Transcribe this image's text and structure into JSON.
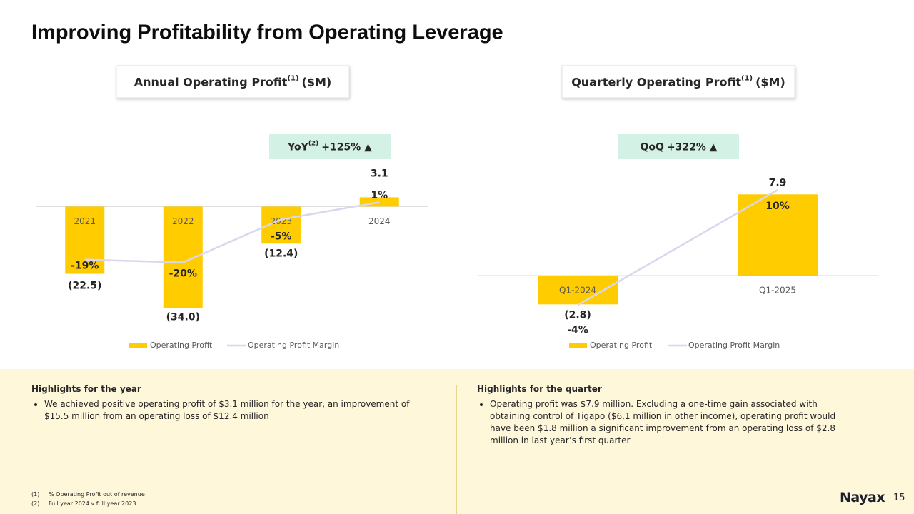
{
  "title": "Improving Profitability from Operating Leverage",
  "chart_data": [
    {
      "type": "bar",
      "title": "Annual Operating Profit",
      "title_superscript": "(1)",
      "title_unit": "($M)",
      "badge": {
        "label": "YoY",
        "superscript": "(2)",
        "value": "+125% ▲"
      },
      "categories": [
        "2021",
        "2022",
        "2023",
        "2024"
      ],
      "series": [
        {
          "name": "Operating Profit",
          "color": "#FFCC00",
          "values": [
            -22.5,
            -34.0,
            -12.4,
            3.1
          ],
          "value_labels": [
            "(22.5)",
            "(34.0)",
            "(12.4)",
            "3.1"
          ]
        },
        {
          "name": "Operating Profit Margin",
          "type": "line",
          "axis": "y2",
          "color": "#D9D6EE",
          "values": [
            -19,
            -20,
            -5,
            1
          ],
          "value_labels": [
            "-19%",
            "-20%",
            "-5%",
            "1%"
          ]
        }
      ],
      "ylim": [
        -36,
        13
      ],
      "y2lim": [
        -38,
        13
      ],
      "legend": "bottom"
    },
    {
      "type": "bar",
      "title": "Quarterly Operating Profit",
      "title_superscript": "(1)",
      "title_unit": "($M)",
      "badge": {
        "label": "QoQ",
        "value": "+322% ▲"
      },
      "categories": [
        "Q1-2024",
        "Q1-2025"
      ],
      "series": [
        {
          "name": "Operating Profit",
          "color": "#FFCC00",
          "values": [
            -2.8,
            7.9
          ],
          "value_labels": [
            "(2.8)",
            "7.9"
          ]
        },
        {
          "name": "Operating Profit Margin",
          "type": "line",
          "axis": "y2",
          "color": "#D9D6EE",
          "values": [
            -4,
            10
          ],
          "value_labels": [
            "-4%",
            "10%"
          ]
        }
      ],
      "ylim": [
        -3.75,
        9.45
      ],
      "y2lim": [
        -5.1,
        11.4
      ],
      "legend": "bottom"
    }
  ],
  "highlights": [
    {
      "heading": "Highlights for the year",
      "bullets": [
        "We achieved positive operating profit of $3.1 million for the year, an improvement of $15.5 million from an operating loss of $12.4 million"
      ]
    },
    {
      "heading": "Highlights for the quarter",
      "bullets": [
        "Operating profit was $7.9 million. Excluding a one-time gain associated with obtaining control of Tigapo ($6.1 million in other income), operating profit would have been $1.8 million  a significant improvement from an operating loss of $2.8 million in last year’s first quarter"
      ]
    }
  ],
  "footnotes": [
    {
      "marker": "(1)",
      "text": "% Operating Profit out of revenue"
    },
    {
      "marker": "(2)",
      "text": "Full year 2024 v full year 2023"
    }
  ],
  "logo": "Nayax",
  "page_number": "15"
}
